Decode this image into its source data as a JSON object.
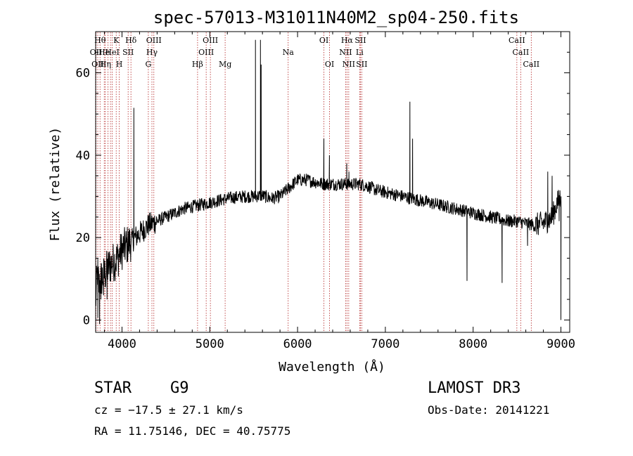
{
  "chart_data": {
    "type": "line",
    "title": "spec-57013-M31011N40M2_sp04-250.fits",
    "xlabel": "Wavelength (Å)",
    "ylabel": "Flux (relative)",
    "xlim": [
      3700,
      9100
    ],
    "ylim": [
      -3,
      70
    ],
    "xticks": [
      4000,
      5000,
      6000,
      7000,
      8000,
      9000
    ],
    "yticks": [
      0,
      20,
      40,
      60
    ],
    "line_color": "#000000",
    "marker_color": "#b22222",
    "anchors": [
      [
        3700,
        4
      ],
      [
        3720,
        12
      ],
      [
        3740,
        8
      ],
      [
        3760,
        10
      ],
      [
        3800,
        11
      ],
      [
        3850,
        13
      ],
      [
        3900,
        14
      ],
      [
        3950,
        15
      ],
      [
        4000,
        17
      ],
      [
        4050,
        18
      ],
      [
        4100,
        19
      ],
      [
        4150,
        20
      ],
      [
        4200,
        21
      ],
      [
        4250,
        22
      ],
      [
        4300,
        23
      ],
      [
        4400,
        24
      ],
      [
        4500,
        25
      ],
      [
        4600,
        26
      ],
      [
        4700,
        27
      ],
      [
        4800,
        27.5
      ],
      [
        4900,
        28
      ],
      [
        5000,
        28.5
      ],
      [
        5100,
        29
      ],
      [
        5200,
        29.5
      ],
      [
        5300,
        29.8
      ],
      [
        5400,
        30
      ],
      [
        5500,
        30
      ],
      [
        5600,
        30.2
      ],
      [
        5700,
        29.5
      ],
      [
        5800,
        30
      ],
      [
        5900,
        32
      ],
      [
        6000,
        34
      ],
      [
        6100,
        34
      ],
      [
        6200,
        33.5
      ],
      [
        6300,
        33
      ],
      [
        6400,
        33
      ],
      [
        6500,
        33
      ],
      [
        6600,
        33
      ],
      [
        6700,
        33
      ],
      [
        6800,
        32.5
      ],
      [
        6900,
        31.5
      ],
      [
        7000,
        31
      ],
      [
        7100,
        30.5
      ],
      [
        7200,
        30
      ],
      [
        7300,
        29.5
      ],
      [
        7400,
        29
      ],
      [
        7500,
        28.5
      ],
      [
        7600,
        28
      ],
      [
        7700,
        27.5
      ],
      [
        7800,
        27
      ],
      [
        7900,
        26.5
      ],
      [
        8000,
        26
      ],
      [
        8100,
        25.5
      ],
      [
        8200,
        25
      ],
      [
        8300,
        24.5
      ],
      [
        8400,
        24
      ],
      [
        8500,
        24
      ],
      [
        8600,
        23.5
      ],
      [
        8700,
        23
      ],
      [
        8800,
        23.5
      ],
      [
        8900,
        25
      ],
      [
        8950,
        28
      ],
      [
        9000,
        30
      ]
    ],
    "spikes": [
      [
        3725,
        0.5
      ],
      [
        3745,
        -1
      ],
      [
        3760,
        5
      ],
      [
        3790,
        6
      ],
      [
        3830,
        5
      ],
      [
        4135,
        51.5
      ],
      [
        5520,
        68
      ],
      [
        5577,
        68
      ],
      [
        5585,
        62
      ],
      [
        6300,
        44
      ],
      [
        6363,
        40
      ],
      [
        6560,
        38
      ],
      [
        6585,
        36
      ],
      [
        7280,
        53
      ],
      [
        7310,
        44
      ],
      [
        7930,
        9.5
      ],
      [
        8330,
        9
      ],
      [
        8620,
        18
      ],
      [
        8850,
        36
      ],
      [
        8900,
        35
      ],
      [
        8980,
        24
      ],
      [
        9000,
        0
      ]
    ],
    "lines": [
      {
        "wl": 3704,
        "label": "OII",
        "row": 1
      },
      {
        "wl": 3724,
        "label": "OII",
        "row": 2
      },
      {
        "wl": 3750,
        "label": "Hθ",
        "row": 0
      },
      {
        "wl": 3798,
        "label": "He",
        "row": 1
      },
      {
        "wl": 3811,
        "label": "Hη",
        "row": 2
      },
      {
        "wl": 3840,
        "label": "",
        "row": 0
      },
      {
        "wl": 3869,
        "label": "",
        "row": 0
      },
      {
        "wl": 3889,
        "label": "HeI",
        "row": 1
      },
      {
        "wl": 3934,
        "label": "K",
        "row": 0
      },
      {
        "wl": 3969,
        "label": "H",
        "row": 2
      },
      {
        "wl": 4070,
        "label": "SII",
        "row": 1
      },
      {
        "wl": 4102,
        "label": "Hδ",
        "row": 0
      },
      {
        "wl": 4300,
        "label": "G",
        "row": 2
      },
      {
        "wl": 4341,
        "label": "Hγ",
        "row": 1
      },
      {
        "wl": 4363,
        "label": "OIII",
        "row": 0
      },
      {
        "wl": 4861,
        "label": "Hβ",
        "row": 2
      },
      {
        "wl": 4959,
        "label": "OIII",
        "row": 1
      },
      {
        "wl": 5007,
        "label": "OIII",
        "row": 0
      },
      {
        "wl": 5175,
        "label": "Mg",
        "row": 2
      },
      {
        "wl": 5893,
        "label": "Na",
        "row": 1
      },
      {
        "wl": 6300,
        "label": "OI",
        "row": 0
      },
      {
        "wl": 6364,
        "label": "OI",
        "row": 2
      },
      {
        "wl": 6548,
        "label": "NII",
        "row": 1
      },
      {
        "wl": 6563,
        "label": "Hα",
        "row": 0
      },
      {
        "wl": 6583,
        "label": "NII",
        "row": 2
      },
      {
        "wl": 6707,
        "label": "Li",
        "row": 1
      },
      {
        "wl": 6716,
        "label": "SII",
        "row": 0
      },
      {
        "wl": 6731,
        "label": "SII",
        "row": 2
      },
      {
        "wl": 8498,
        "label": "CaII",
        "row": 0
      },
      {
        "wl": 8542,
        "label": "CaII",
        "row": 1
      },
      {
        "wl": 8662,
        "label": "CaII",
        "row": 2
      }
    ]
  },
  "info": {
    "class": "STAR",
    "subclass": "G9",
    "survey": "LAMOST DR3",
    "cz": "cz = −17.5 ± 27.1 km/s",
    "obs_date": "Obs-Date: 20141221",
    "radec": "RA =  11.75146, DEC =  40.75775"
  }
}
